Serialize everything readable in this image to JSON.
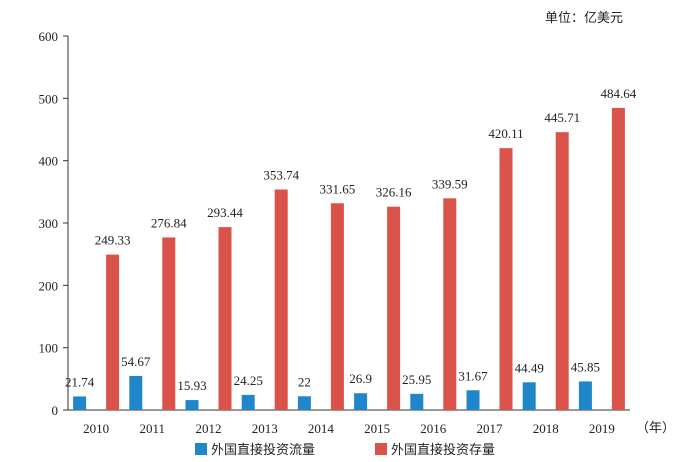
{
  "chart_data": {
    "type": "bar",
    "unit_label": "单位：亿美元",
    "x_suffix": "（年）",
    "categories": [
      "2010",
      "2011",
      "2012",
      "2013",
      "2014",
      "2015",
      "2016",
      "2017",
      "2018",
      "2019"
    ],
    "series": [
      {
        "name": "外国直接投资流量",
        "color": "#1f87c9",
        "values": [
          21.74,
          54.67,
          15.93,
          24.25,
          22,
          26.9,
          25.95,
          31.67,
          44.49,
          45.85
        ],
        "labels": [
          "21.74",
          "54.67",
          "15.93",
          "24.25",
          "22",
          "26.9",
          "25.95",
          "31.67",
          "44.49",
          "45.85"
        ]
      },
      {
        "name": "外国直接投资存量",
        "color": "#d9534a",
        "values": [
          249.33,
          276.84,
          293.44,
          353.74,
          331.65,
          326.16,
          339.59,
          420.11,
          445.71,
          484.64
        ],
        "labels": [
          "249.33",
          "276.84",
          "293.44",
          "353.74",
          "331.65",
          "326.16",
          "339.59",
          "420.11",
          "445.71",
          "484.64"
        ]
      }
    ],
    "ylim": [
      0,
      600
    ],
    "yticks": [
      0,
      100,
      200,
      300,
      400,
      500,
      600
    ],
    "grid": false,
    "legend": "bottom"
  }
}
